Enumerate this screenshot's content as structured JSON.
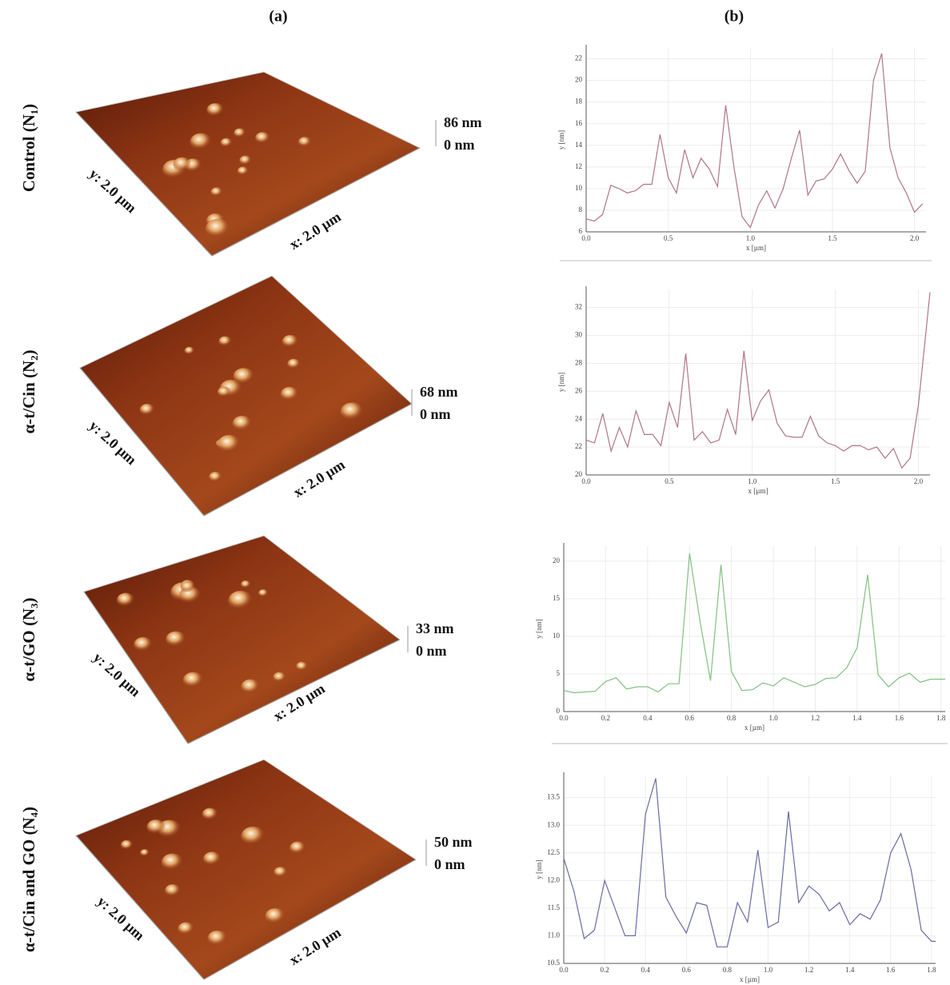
{
  "panel_labels": [
    "(a)",
    "(b)"
  ],
  "rows": [
    {
      "label": "Control (N₁)",
      "z_max": "86 nm",
      "z_min": "0 nm",
      "y_size": "y: 2.0 µm",
      "x_size": "x: 2.0 µm"
    },
    {
      "label": "α-t/Cin (N₂)",
      "z_max": "68 nm",
      "z_min": "0 nm",
      "y_size": "y: 2.0 µm",
      "x_size": "x: 2.0 µm"
    },
    {
      "label": "α-t/GO (N₃)",
      "z_max": "33 nm",
      "z_min": "0 nm",
      "y_size": "y: 2.0 µm",
      "x_size": "x: 2.0 µm"
    },
    {
      "label": "α-t/Cin and GO (N₄)",
      "z_max": "50 nm",
      "z_min": "0 nm",
      "y_size": "y: 2.0 µm",
      "x_size": "x: 2.0 µm"
    }
  ],
  "chart_data": [
    {
      "type": "line",
      "xlabel": "x [µm]",
      "ylabel": "y [nm]",
      "color": "#b07585",
      "grid": true,
      "x": [
        0,
        0.05,
        0.1,
        0.15,
        0.2,
        0.25,
        0.3,
        0.35,
        0.4,
        0.45,
        0.5,
        0.55,
        0.6,
        0.65,
        0.7,
        0.75,
        0.8,
        0.85,
        0.9,
        0.95,
        1.0,
        1.05,
        1.1,
        1.15,
        1.2,
        1.25,
        1.3,
        1.35,
        1.4,
        1.45,
        1.5,
        1.55,
        1.6,
        1.65,
        1.7,
        1.75,
        1.8,
        1.85,
        1.9,
        1.95,
        2.0,
        2.05
      ],
      "values": [
        7.2,
        7.0,
        7.6,
        10.3,
        10.0,
        9.6,
        9.8,
        10.4,
        10.4,
        15.0,
        11.0,
        9.6,
        13.6,
        11.0,
        12.8,
        11.8,
        10.2,
        17.7,
        12.0,
        7.4,
        6.4,
        8.5,
        9.8,
        8.2,
        10.0,
        12.8,
        15.4,
        9.4,
        10.7,
        10.9,
        11.8,
        13.2,
        11.7,
        10.5,
        11.6,
        20.0,
        22.5,
        13.8,
        11.0,
        9.6,
        7.8,
        8.6
      ],
      "xlim": [
        0,
        2.07
      ],
      "ylim": [
        6,
        23
      ],
      "xticks": [
        {
          "value": 0,
          "label": "0.0"
        },
        0.5,
        {
          "value": 1,
          "label": "1.0"
        },
        1.5,
        {
          "value": 2,
          "label": "2.0"
        }
      ],
      "yticks": [
        6,
        8,
        10,
        12,
        14,
        16,
        18,
        20,
        22
      ]
    },
    {
      "type": "line",
      "xlabel": "x [µm]",
      "ylabel": "y [nm]",
      "color": "#b07585",
      "grid": true,
      "x": [
        0,
        0.05,
        0.1,
        0.15,
        0.2,
        0.25,
        0.3,
        0.35,
        0.4,
        0.45,
        0.5,
        0.55,
        0.6,
        0.65,
        0.7,
        0.75,
        0.8,
        0.85,
        0.9,
        0.95,
        1.0,
        1.05,
        1.1,
        1.15,
        1.2,
        1.25,
        1.3,
        1.35,
        1.4,
        1.45,
        1.5,
        1.55,
        1.6,
        1.65,
        1.7,
        1.75,
        1.8,
        1.85,
        1.9,
        1.95,
        2.0,
        2.07
      ],
      "values": [
        22.5,
        22.3,
        24.4,
        21.7,
        23.4,
        22.0,
        24.6,
        22.9,
        22.9,
        22.1,
        25.2,
        23.4,
        28.7,
        22.5,
        23.1,
        22.3,
        22.5,
        24.7,
        22.9,
        28.9,
        23.9,
        25.3,
        26.1,
        23.7,
        22.8,
        22.7,
        22.7,
        24.2,
        22.8,
        22.3,
        22.1,
        21.7,
        22.1,
        22.1,
        21.8,
        22.0,
        21.2,
        21.9,
        20.5,
        21.2,
        25.0,
        33.1
      ],
      "xlim": [
        0,
        2.07
      ],
      "ylim": [
        20,
        33.3
      ],
      "xticks": [
        {
          "value": 0,
          "label": "0.0"
        },
        0.5,
        {
          "value": 1,
          "label": "1.0"
        },
        1.5,
        {
          "value": 2,
          "label": "2.0"
        }
      ],
      "yticks": [
        20,
        22,
        24,
        26,
        28,
        30,
        32
      ]
    },
    {
      "type": "line",
      "xlabel": "x [µm]",
      "ylabel": "y [nm]",
      "color": "#82c082",
      "grid": true,
      "x": [
        0,
        0.05,
        0.1,
        0.15,
        0.2,
        0.25,
        0.3,
        0.35,
        0.4,
        0.45,
        0.5,
        0.55,
        0.6,
        0.65,
        0.7,
        0.75,
        0.8,
        0.85,
        0.9,
        0.95,
        1.0,
        1.05,
        1.1,
        1.15,
        1.2,
        1.25,
        1.3,
        1.35,
        1.4,
        1.45,
        1.5,
        1.55,
        1.6,
        1.65,
        1.7,
        1.75,
        1.8,
        1.82
      ],
      "values": [
        2.8,
        2.5,
        2.6,
        2.7,
        4.0,
        4.5,
        3.0,
        3.3,
        3.3,
        2.6,
        3.7,
        3.7,
        21.0,
        12.0,
        4.1,
        19.5,
        5.3,
        2.8,
        2.9,
        3.8,
        3.4,
        4.5,
        3.9,
        3.3,
        3.6,
        4.4,
        4.5,
        5.8,
        8.5,
        18.2,
        4.9,
        3.3,
        4.5,
        5.1,
        3.9,
        4.3,
        4.3,
        4.3
      ],
      "xlim": [
        0,
        1.82
      ],
      "ylim": [
        0,
        22
      ],
      "xticks": [
        {
          "value": 0,
          "label": "0.0"
        },
        0.2,
        0.4,
        0.6,
        0.8,
        {
          "value": 1,
          "label": "1.0"
        },
        1.2,
        1.4,
        1.6,
        1.8
      ],
      "yticks": [
        0,
        5,
        10,
        15,
        20
      ]
    },
    {
      "type": "line",
      "xlabel": "x [µm]",
      "ylabel": "y [nm]",
      "color": "#6a6aa6",
      "grid": true,
      "x": [
        0,
        0.05,
        0.1,
        0.15,
        0.2,
        0.25,
        0.3,
        0.35,
        0.4,
        0.45,
        0.5,
        0.55,
        0.6,
        0.65,
        0.7,
        0.75,
        0.8,
        0.85,
        0.9,
        0.95,
        1.0,
        1.05,
        1.1,
        1.15,
        1.2,
        1.25,
        1.3,
        1.35,
        1.4,
        1.45,
        1.5,
        1.55,
        1.6,
        1.65,
        1.7,
        1.75,
        1.8,
        1.82
      ],
      "values": [
        12.4,
        11.8,
        10.95,
        11.1,
        12.0,
        11.5,
        11.0,
        11.0,
        13.2,
        13.85,
        11.7,
        11.35,
        11.05,
        11.6,
        11.55,
        10.8,
        10.8,
        11.6,
        11.25,
        12.55,
        11.15,
        11.25,
        13.25,
        11.6,
        11.9,
        11.75,
        11.45,
        11.6,
        11.2,
        11.4,
        11.3,
        11.65,
        12.5,
        12.85,
        12.2,
        11.1,
        10.9,
        10.9
      ],
      "xlim": [
        0,
        1.82
      ],
      "ylim": [
        10.5,
        13.9
      ],
      "xticks": [
        {
          "value": 0,
          "label": "0.0"
        },
        0.2,
        0.4,
        0.6,
        0.8,
        {
          "value": 1,
          "label": "1.0"
        },
        1.2,
        1.4,
        1.6,
        1.8
      ],
      "yticks": [
        10.5,
        {
          "value": 11,
          "label": "11.0"
        },
        11.5,
        {
          "value": 12,
          "label": "12.0"
        },
        12.5,
        {
          "value": 13,
          "label": "13.0"
        },
        13.5
      ]
    }
  ]
}
